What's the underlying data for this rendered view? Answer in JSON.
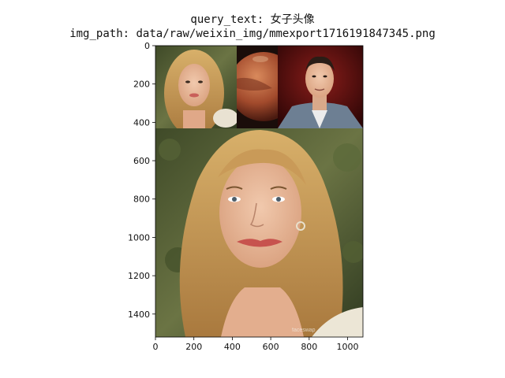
{
  "figure": {
    "title_line1": "query_text: 女子头像",
    "title_line2": "img_path: data/raw/weixin_img/mmexport1716191847345.png"
  },
  "image_panels": [
    {
      "name": "blonde-woman-portrait-small",
      "description_icon": "portrait-thumbnail-icon"
    },
    {
      "name": "mars-planet",
      "description_icon": "planet-icon"
    },
    {
      "name": "man-portrait-red-background",
      "description_icon": "portrait-thumbnail-icon"
    },
    {
      "name": "blonde-woman-portrait-large",
      "description_icon": "portrait-main-icon"
    }
  ],
  "watermark": {
    "text": "faceswap"
  },
  "axes": {
    "x_ticks": [
      "0",
      "200",
      "400",
      "600",
      "800",
      "1000"
    ],
    "y_ticks": [
      "0",
      "200",
      "400",
      "600",
      "800",
      "1000",
      "1200",
      "1400"
    ],
    "x_range": [
      0,
      1080
    ],
    "y_range": [
      0,
      1520
    ]
  },
  "colors": {
    "frame": "#000000",
    "mars": "#b5573a",
    "red_bg": "#5a0d0d",
    "hair": "#c9a262",
    "skin": "#e8b99a",
    "foliage": "#4f5c33"
  }
}
